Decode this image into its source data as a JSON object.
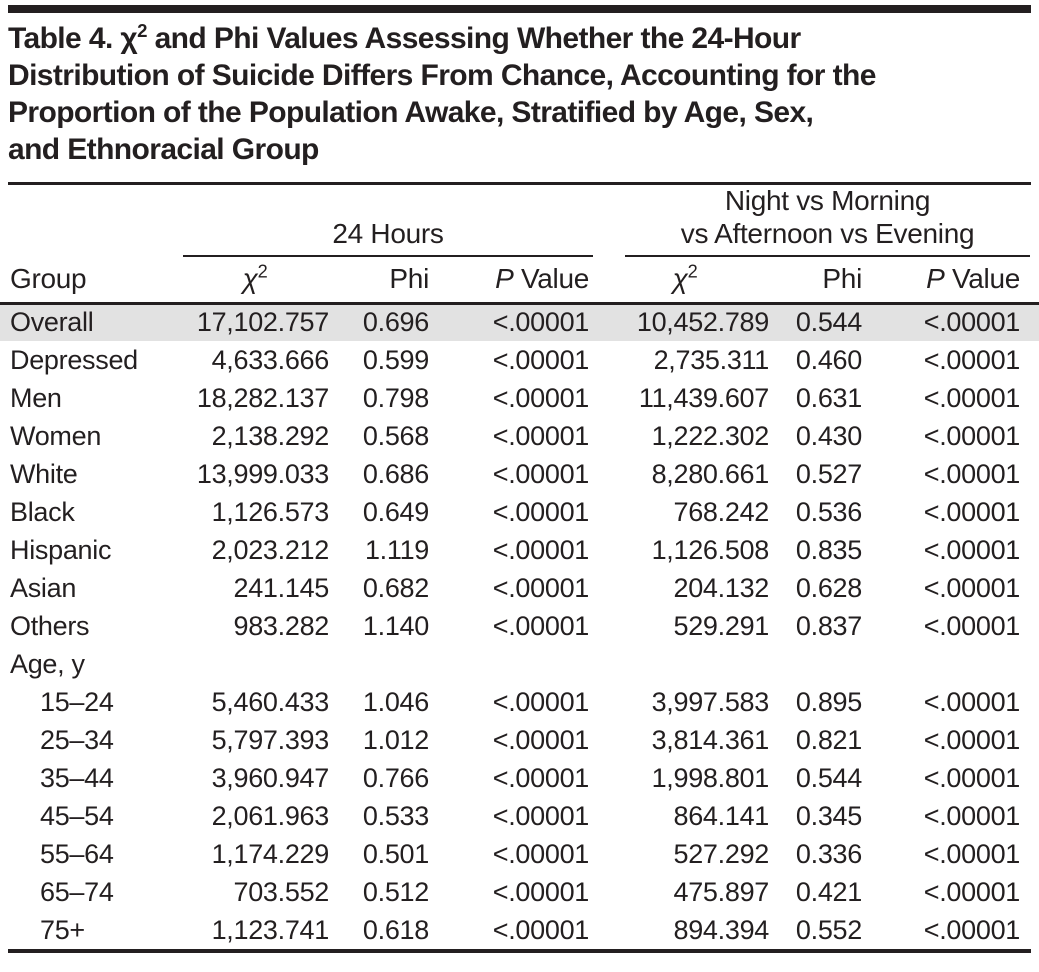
{
  "colors": {
    "ink": "#231f20",
    "highlight_row": "#e2e2e2",
    "background": "#ffffff"
  },
  "title": {
    "line1_prefix": "Table 4. χ",
    "line1_sup": "2",
    "line1_rest": " and Phi Values Assessing Whether the 24-Hour",
    "line2": "Distribution of Suicide Differs From Chance, Accounting for the",
    "line3": "Proportion of the Population Awake, Stratified by Age, Sex,",
    "line4": "and Ethnoracial Group"
  },
  "header": {
    "group_col": "Group",
    "spanner1_line2": "24 Hours",
    "spanner2_line1": "Night vs Morning",
    "spanner2_line2": "vs Afternoon vs Evening",
    "chi_base": "χ",
    "chi_sup": "2",
    "phi": "Phi",
    "p_italic": "P",
    "p_rest": " Value"
  },
  "chart_data": {
    "type": "table",
    "title": "Table 4. χ2 and Phi Values Assessing Whether the 24-Hour Distribution of Suicide Differs From Chance, Accounting for the Proportion of the Population Awake, Stratified by Age, Sex, and Ethnoracial Group",
    "column_groups": [
      "24 Hours",
      "Night vs Morning vs Afternoon vs Evening"
    ],
    "columns": [
      "Group",
      "24 Hours: χ2",
      "24 Hours: Phi",
      "24 Hours: P Value",
      "Night vs Morning vs Afternoon vs Evening: χ2",
      "Night vs Morning vs Afternoon vs Evening: Phi",
      "Night vs Morning vs Afternoon vs Evening: P Value"
    ],
    "rows": [
      {
        "group": "Overall",
        "highlight": true,
        "indent": false,
        "values": [
          "17,102.757",
          "0.696",
          "<.00001",
          "10,452.789",
          "0.544",
          "<.00001"
        ]
      },
      {
        "group": "Depressed",
        "highlight": false,
        "indent": false,
        "values": [
          "4,633.666",
          "0.599",
          "<.00001",
          "2,735.311",
          "0.460",
          "<.00001"
        ]
      },
      {
        "group": "Men",
        "highlight": false,
        "indent": false,
        "values": [
          "18,282.137",
          "0.798",
          "<.00001",
          "11,439.607",
          "0.631",
          "<.00001"
        ]
      },
      {
        "group": "Women",
        "highlight": false,
        "indent": false,
        "values": [
          "2,138.292",
          "0.568",
          "<.00001",
          "1,222.302",
          "0.430",
          "<.00001"
        ]
      },
      {
        "group": "White",
        "highlight": false,
        "indent": false,
        "values": [
          "13,999.033",
          "0.686",
          "<.00001",
          "8,280.661",
          "0.527",
          "<.00001"
        ]
      },
      {
        "group": "Black",
        "highlight": false,
        "indent": false,
        "values": [
          "1,126.573",
          "0.649",
          "<.00001",
          "768.242",
          "0.536",
          "<.00001"
        ]
      },
      {
        "group": "Hispanic",
        "highlight": false,
        "indent": false,
        "values": [
          "2,023.212",
          "1.119",
          "<.00001",
          "1,126.508",
          "0.835",
          "<.00001"
        ]
      },
      {
        "group": "Asian",
        "highlight": false,
        "indent": false,
        "values": [
          "241.145",
          "0.682",
          "<.00001",
          "204.132",
          "0.628",
          "<.00001"
        ]
      },
      {
        "group": "Others",
        "highlight": false,
        "indent": false,
        "values": [
          "983.282",
          "1.140",
          "<.00001",
          "529.291",
          "0.837",
          "<.00001"
        ]
      },
      {
        "group": "Age, y",
        "highlight": false,
        "indent": false,
        "values": []
      },
      {
        "group": "15–24",
        "highlight": false,
        "indent": true,
        "values": [
          "5,460.433",
          "1.046",
          "<.00001",
          "3,997.583",
          "0.895",
          "<.00001"
        ]
      },
      {
        "group": "25–34",
        "highlight": false,
        "indent": true,
        "values": [
          "5,797.393",
          "1.012",
          "<.00001",
          "3,814.361",
          "0.821",
          "<.00001"
        ]
      },
      {
        "group": "35–44",
        "highlight": false,
        "indent": true,
        "values": [
          "3,960.947",
          "0.766",
          "<.00001",
          "1,998.801",
          "0.544",
          "<.00001"
        ]
      },
      {
        "group": "45–54",
        "highlight": false,
        "indent": true,
        "values": [
          "2,061.963",
          "0.533",
          "<.00001",
          "864.141",
          "0.345",
          "<.00001"
        ]
      },
      {
        "group": "55–64",
        "highlight": false,
        "indent": true,
        "values": [
          "1,174.229",
          "0.501",
          "<.00001",
          "527.292",
          "0.336",
          "<.00001"
        ]
      },
      {
        "group": "65–74",
        "highlight": false,
        "indent": true,
        "values": [
          "703.552",
          "0.512",
          "<.00001",
          "475.897",
          "0.421",
          "<.00001"
        ]
      },
      {
        "group": "75+",
        "highlight": false,
        "indent": true,
        "values": [
          "1,123.741",
          "0.618",
          "<.00001",
          "894.394",
          "0.552",
          "<.00001"
        ]
      }
    ]
  }
}
